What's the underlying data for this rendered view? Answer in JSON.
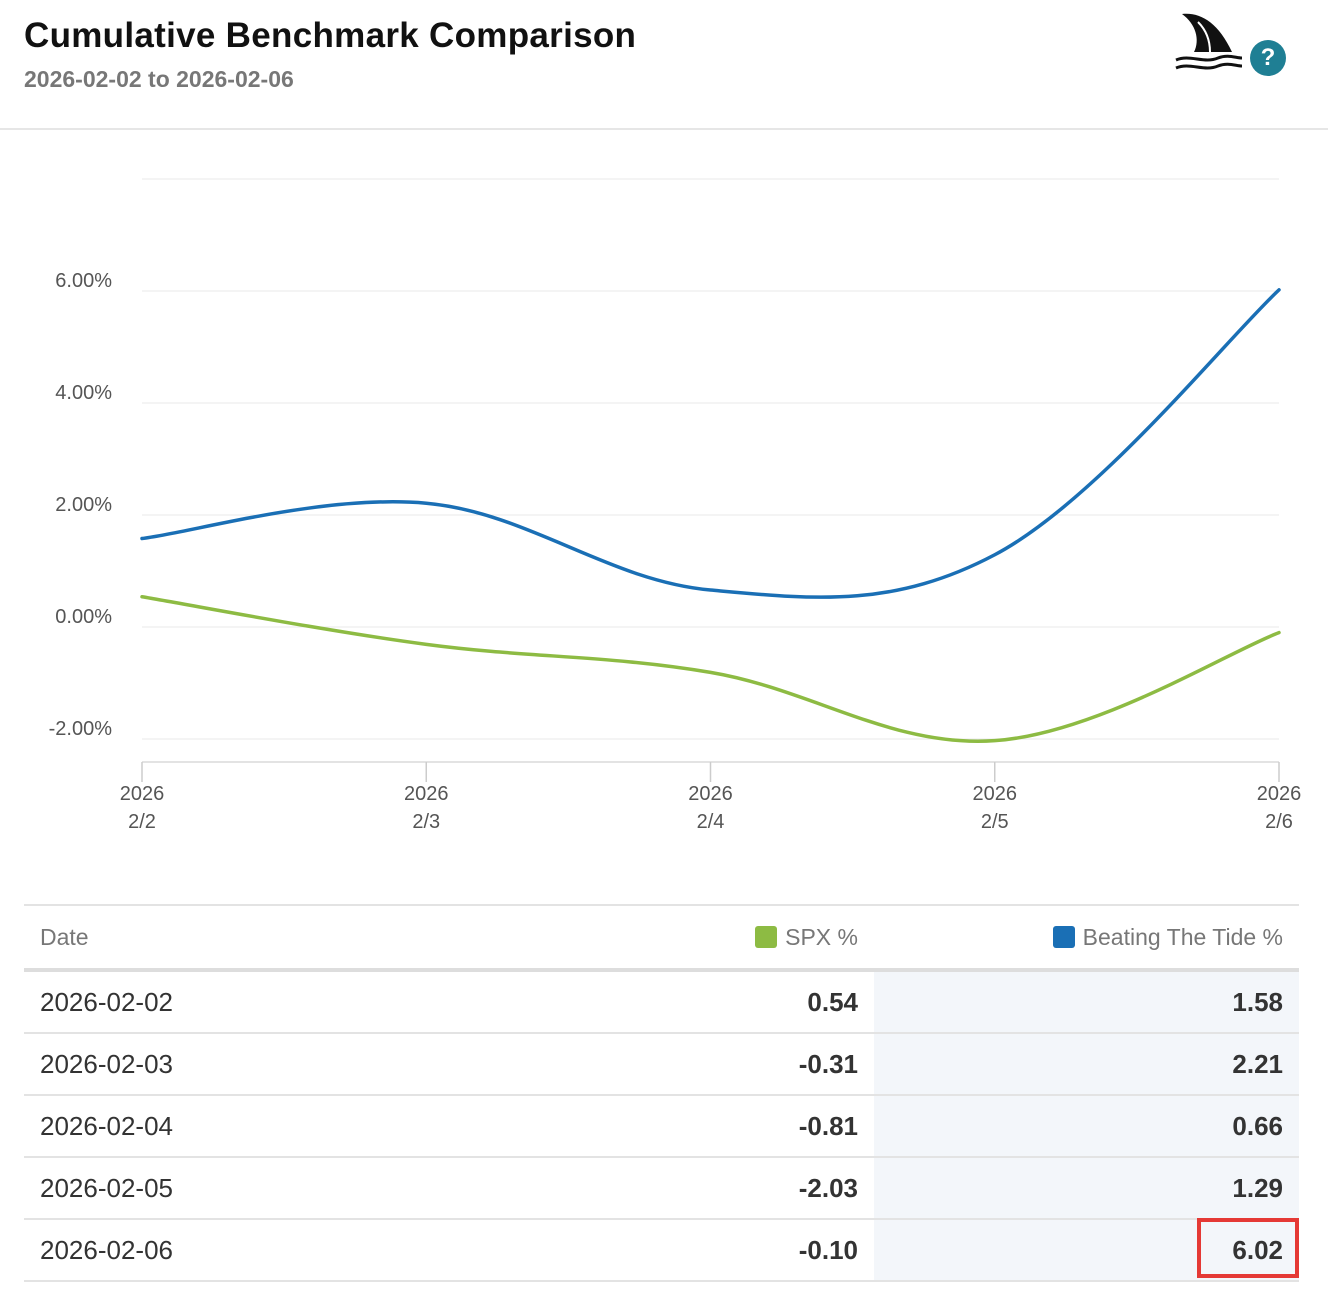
{
  "header": {
    "title": "Cumulative Benchmark Comparison",
    "subtitle": "2026-02-02 to 2026-02-06",
    "help_label": "?"
  },
  "colors": {
    "spx": "#8dbb43",
    "btt": "#1a6fb5",
    "highlight": "#e53935"
  },
  "chart_data": {
    "type": "line",
    "x": [
      "2026-02-02",
      "2026-02-03",
      "2026-02-04",
      "2026-02-05",
      "2026-02-06"
    ],
    "x_tick_labels": [
      [
        "2026",
        "2/2"
      ],
      [
        "2026",
        "2/3"
      ],
      [
        "2026",
        "2/4"
      ],
      [
        "2026",
        "2/5"
      ],
      [
        "2026",
        "2/6"
      ]
    ],
    "y_ticks": [
      "-2.00%",
      "0.00%",
      "2.00%",
      "4.00%",
      "6.00%"
    ],
    "y_tick_values": [
      -2,
      0,
      2,
      4,
      6
    ],
    "ylim": [
      -2,
      8
    ],
    "grid": true,
    "series": [
      {
        "name": "SPX %",
        "values": [
          0.54,
          -0.31,
          -0.81,
          -2.03,
          -0.1
        ],
        "color": "#8dbb43"
      },
      {
        "name": "Beating The Tide %",
        "values": [
          1.58,
          2.21,
          0.66,
          1.29,
          6.02
        ],
        "color": "#1a6fb5"
      }
    ]
  },
  "table": {
    "headers": {
      "date": "Date",
      "spx": "SPX %",
      "btt": "Beating The Tide %"
    },
    "rows": [
      {
        "date": "2026-02-02",
        "spx": "0.54",
        "btt": "1.58"
      },
      {
        "date": "2026-02-03",
        "spx": "-0.31",
        "btt": "2.21"
      },
      {
        "date": "2026-02-04",
        "spx": "-0.81",
        "btt": "0.66"
      },
      {
        "date": "2026-02-05",
        "spx": "-2.03",
        "btt": "1.29"
      },
      {
        "date": "2026-02-06",
        "spx": "-0.10",
        "btt": "6.02"
      }
    ],
    "highlighted_cell": {
      "row": 4,
      "column": "btt"
    }
  }
}
